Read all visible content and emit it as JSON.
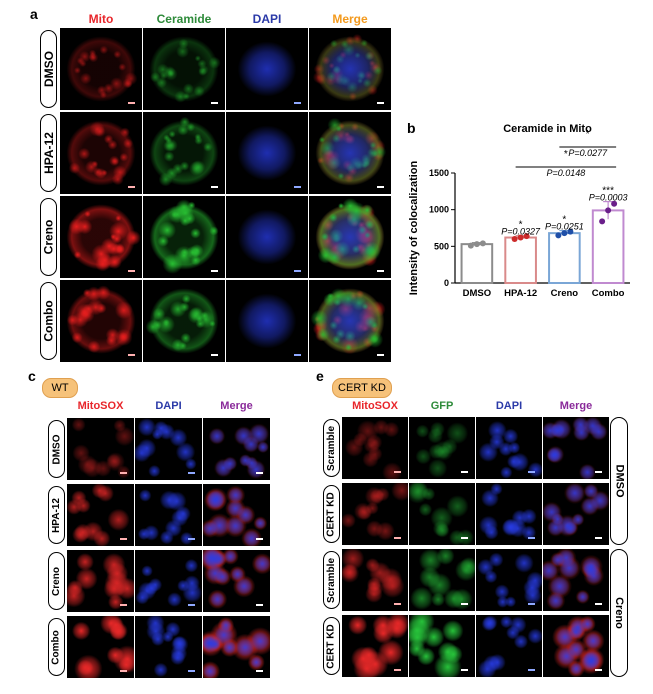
{
  "panel_a": {
    "letter": "a",
    "columns": [
      {
        "label": "Mito",
        "color": "#e8262b",
        "channel": "mito"
      },
      {
        "label": "Ceramide",
        "color": "#2e8b3a",
        "channel": "cer"
      },
      {
        "label": "DAPI",
        "color": "#2b3aa8",
        "channel": "dapi"
      },
      {
        "label": "Merge",
        "color": "#f39a1e",
        "channel": "merge"
      }
    ],
    "rows": [
      "DMSO",
      "HPA-12",
      "Creno",
      "Combo"
    ]
  },
  "panel_b": {
    "letter": "b",
    "chart_data": {
      "type": "bar",
      "title": "Ceramide in Mito",
      "ylabel": "Intensity of colocalization",
      "xlabel": "",
      "categories": [
        "DMSO",
        "HPA-12",
        "Creno",
        "Combo"
      ],
      "values": [
        530,
        620,
        680,
        990
      ],
      "errors": [
        20,
        25,
        35,
        120
      ],
      "points": [
        [
          510,
          530,
          540
        ],
        [
          600,
          620,
          640
        ],
        [
          650,
          680,
          700
        ],
        [
          840,
          990,
          1080
        ]
      ],
      "bar_colors": [
        "#8c8c8c",
        "#d98a8a",
        "#7aa6d6",
        "#c08ad0"
      ],
      "point_colors": [
        "#8c8c8c",
        "#cc2a2a",
        "#1f4fa8",
        "#6a1f8a"
      ],
      "ylim": [
        0,
        1500
      ],
      "yticks": [
        0,
        500,
        1000,
        1500
      ],
      "annotations": [
        {
          "stars": "*",
          "text": "P=0.0327",
          "over": [
            1
          ]
        },
        {
          "stars": "*",
          "text": "P=0.0251",
          "over": [
            2
          ]
        },
        {
          "stars": "***",
          "text": "P=0.0003",
          "over": [
            3
          ]
        },
        {
          "stars": "*",
          "text": "P=0.0148",
          "bracket": [
            1,
            3
          ]
        },
        {
          "stars": "*",
          "text": "P=0.0277",
          "bracket": [
            2,
            3
          ]
        }
      ]
    }
  },
  "panel_c": {
    "letter": "c",
    "tag": "WT",
    "columns": [
      {
        "label": "MitoSOX",
        "color": "#e8262b",
        "channel": "mitosox"
      },
      {
        "label": "DAPI",
        "color": "#2b3aa8",
        "channel": "dapi"
      },
      {
        "label": "Merge",
        "color": "#8a2a9a",
        "channel": "merge"
      }
    ],
    "rows": [
      "DMSO",
      "HPA-12",
      "Creno",
      "Combo"
    ]
  },
  "panel_e": {
    "letter": "e",
    "tag": "CERT KD",
    "columns": [
      {
        "label": "MitoSOX",
        "color": "#e8262b",
        "channel": "mitosox"
      },
      {
        "label": "GFP",
        "color": "#2e8b3a",
        "channel": "gfp"
      },
      {
        "label": "DAPI",
        "color": "#2b3aa8",
        "channel": "dapi"
      },
      {
        "label": "Merge",
        "color": "#8a2a9a",
        "channel": "merge"
      }
    ],
    "rows": [
      "Scramble",
      "CERT KD",
      "Scramble",
      "CERT KD"
    ],
    "groups": [
      "DMSO",
      "Creno"
    ]
  }
}
